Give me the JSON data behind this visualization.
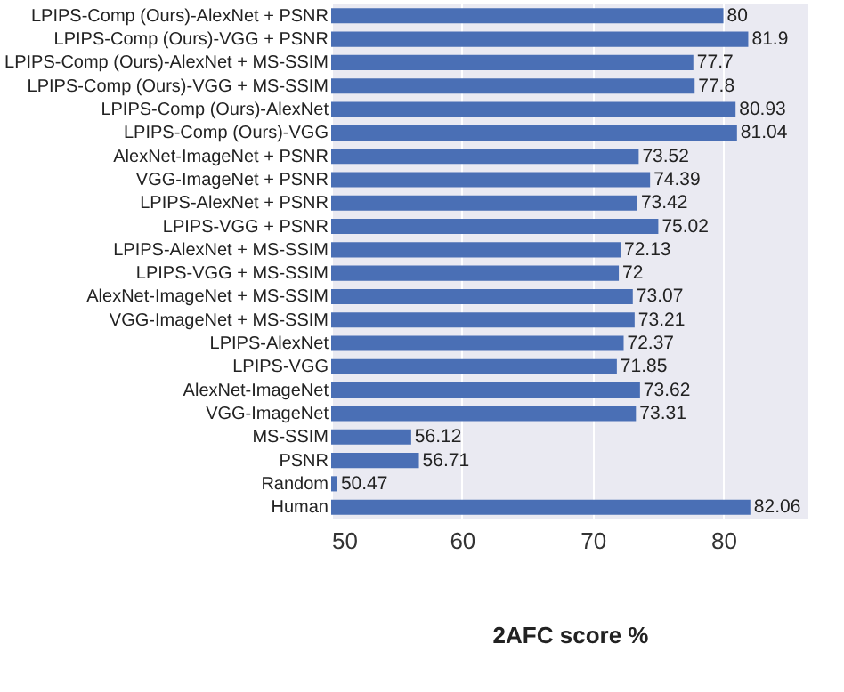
{
  "chart_data": {
    "type": "bar",
    "orientation": "horizontal",
    "xlabel": "2AFC score %",
    "categories": [
      "LPIPS-Comp (Ours)-AlexNet + PSNR",
      "LPIPS-Comp (Ours)-VGG + PSNR",
      "LPIPS-Comp (Ours)-AlexNet + MS-SSIM",
      "LPIPS-Comp (Ours)-VGG + MS-SSIM",
      "LPIPS-Comp (Ours)-AlexNet",
      "LPIPS-Comp (Ours)-VGG",
      "AlexNet-ImageNet + PSNR",
      "VGG-ImageNet + PSNR",
      "LPIPS-AlexNet + PSNR",
      "LPIPS-VGG + PSNR",
      "LPIPS-AlexNet + MS-SSIM",
      "LPIPS-VGG + MS-SSIM",
      "AlexNet-ImageNet + MS-SSIM",
      "VGG-ImageNet + MS-SSIM",
      "LPIPS-AlexNet",
      "LPIPS-VGG",
      "AlexNet-ImageNet",
      "VGG-ImageNet",
      "MS-SSIM",
      "PSNR",
      "Random",
      "Human"
    ],
    "values": [
      80,
      81.9,
      77.7,
      77.8,
      80.93,
      81.04,
      73.52,
      74.39,
      73.42,
      75.02,
      72.13,
      72,
      73.07,
      73.21,
      72.37,
      71.85,
      73.62,
      73.31,
      56.12,
      56.71,
      50.47,
      82.06
    ],
    "color": "#4a6fb5",
    "xlim": [
      50,
      86.5
    ],
    "xticks": [
      50,
      60,
      70,
      80
    ],
    "grid": "x",
    "data_labels": true
  }
}
